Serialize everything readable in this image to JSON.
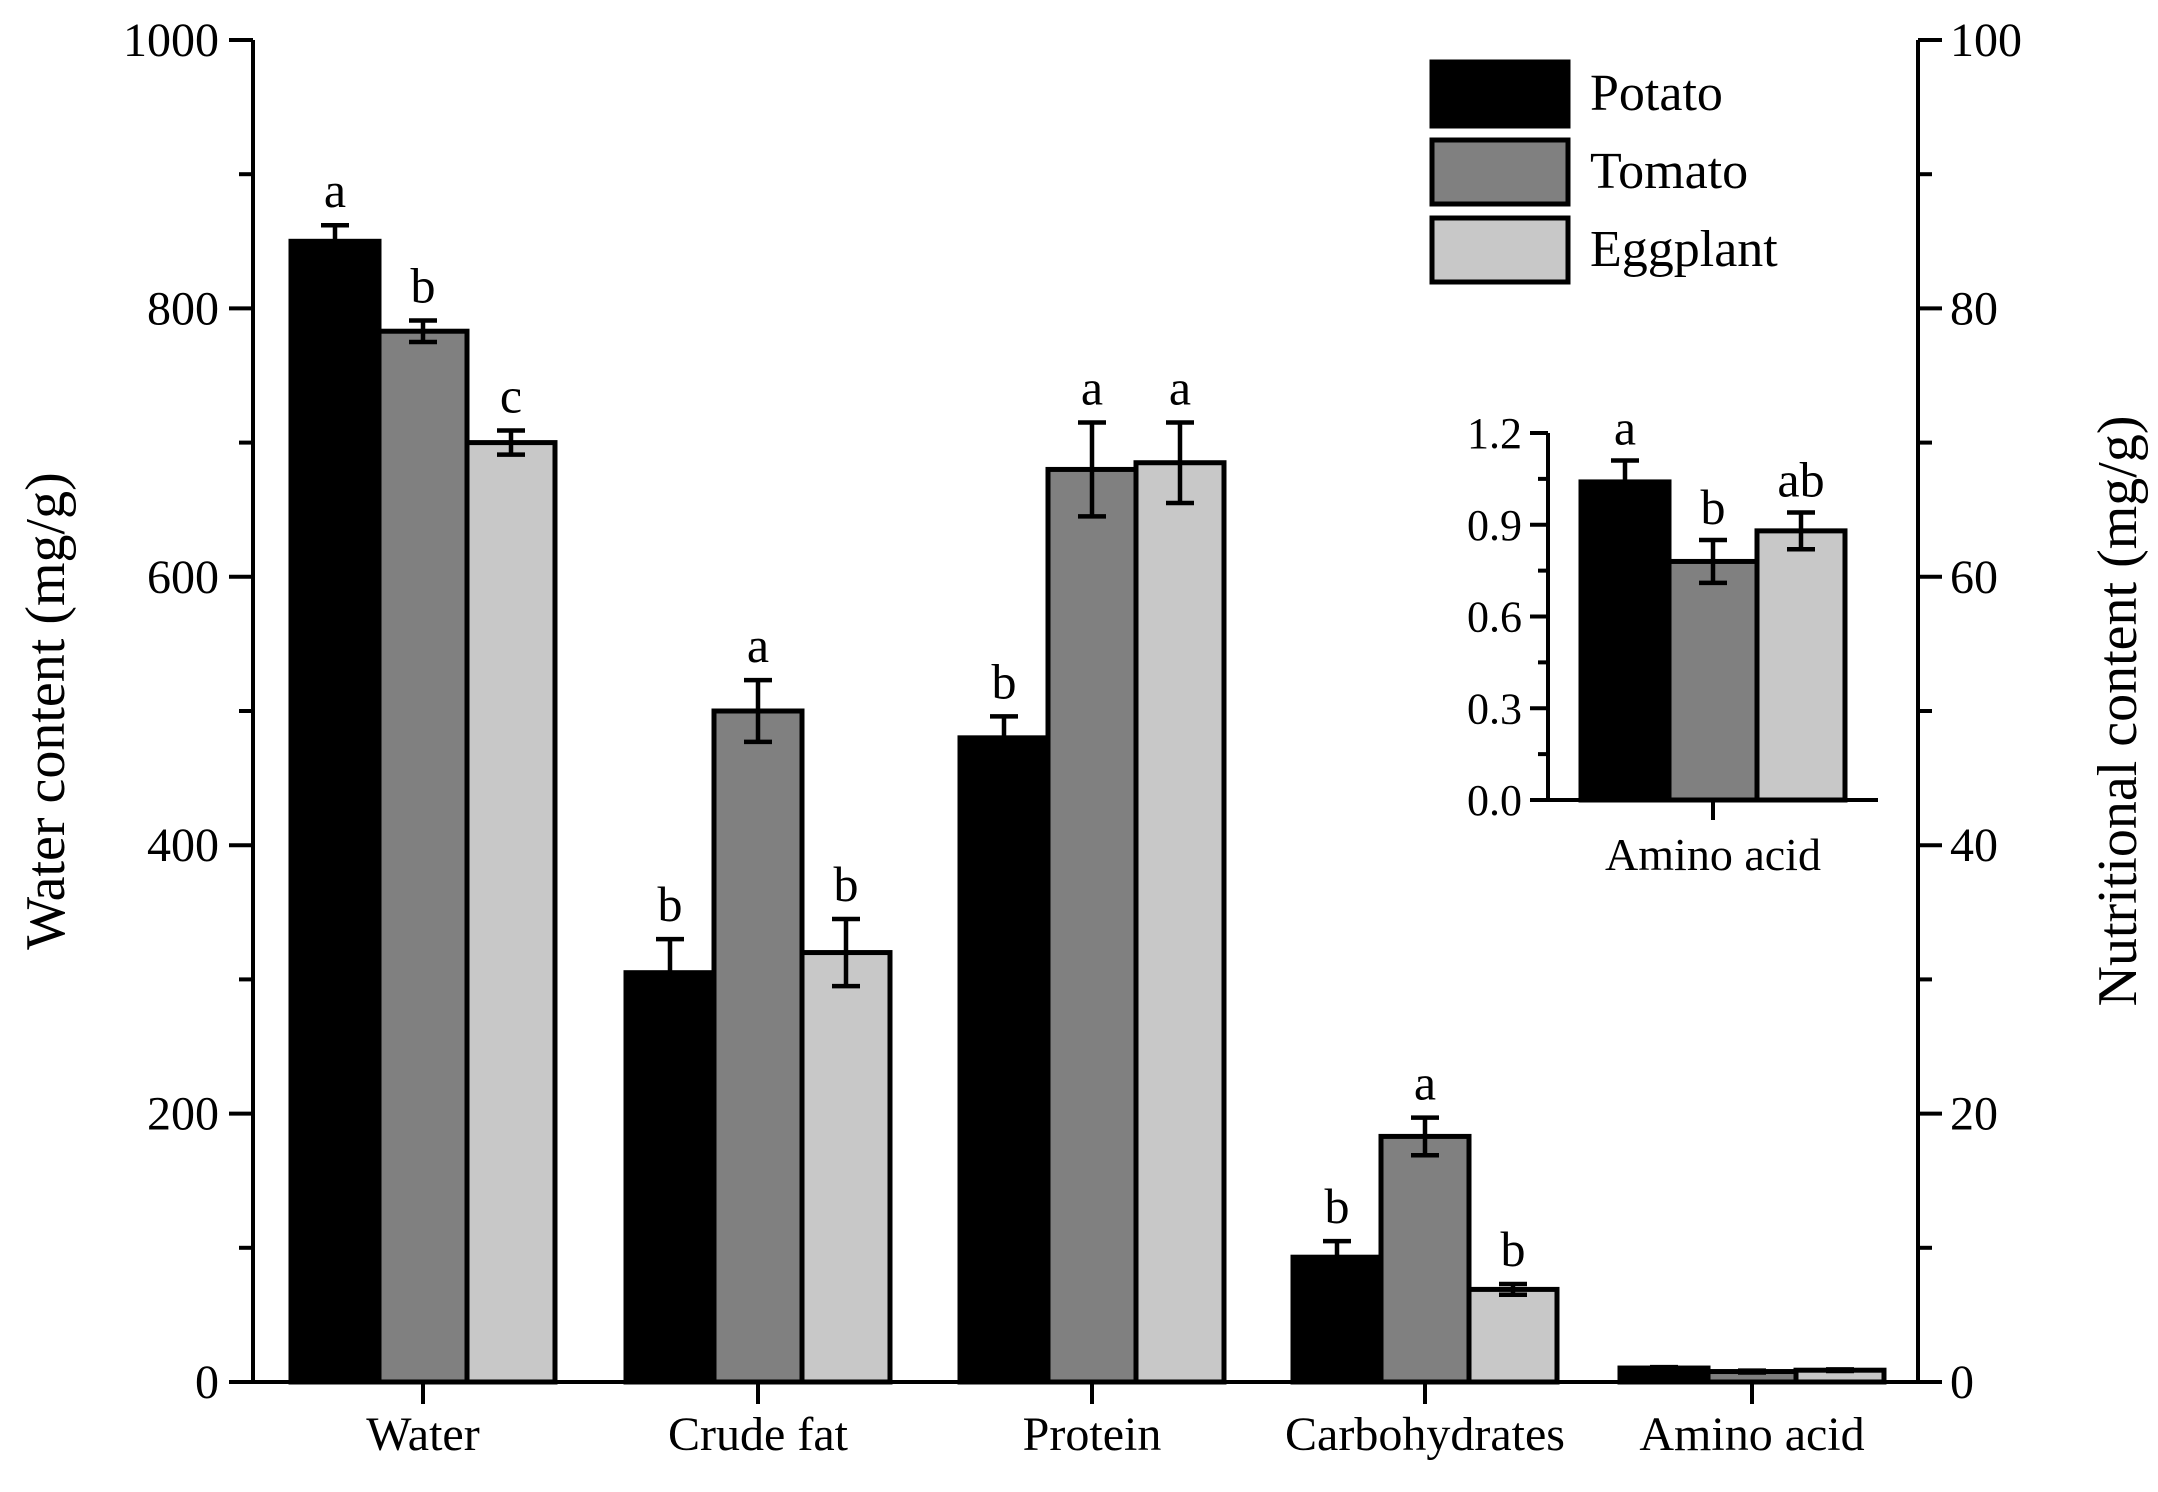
{
  "chart_data": [
    {
      "type": "bar",
      "categories": [
        "Water",
        "Crude fat",
        "Protein",
        "Carbohydrates",
        "Amino acid"
      ],
      "left_axis": {
        "label": "Water content (mg/g)",
        "lim": [
          0,
          1000
        ],
        "ticks": [
          "0",
          "200",
          "400",
          "600",
          "800",
          "1000"
        ],
        "minor_step": 100
      },
      "right_axis": {
        "label": "Nutritional content (mg/g)",
        "lim": [
          0,
          100
        ],
        "ticks": [
          "0",
          "20",
          "40",
          "60",
          "80",
          "100"
        ],
        "minor_step": 10
      },
      "series": [
        {
          "name": "Potato",
          "color": "#000000",
          "values": [
            850,
            30.5,
            48,
            9.3,
            1.04
          ],
          "errors": [
            12,
            2.5,
            1.6,
            1.2,
            0.07
          ],
          "sig": [
            "a",
            "b",
            "b",
            "b",
            ""
          ]
        },
        {
          "name": "Tomato",
          "color": "#808080",
          "values": [
            783,
            50,
            68,
            18.3,
            0.78
          ],
          "errors": [
            8,
            2.3,
            3.5,
            1.4,
            0.07
          ],
          "sig": [
            "b",
            "a",
            "a",
            "a",
            ""
          ]
        },
        {
          "name": "Eggplant",
          "color": "#c8c8c8",
          "values": [
            700,
            32,
            68.5,
            6.9,
            0.88
          ],
          "errors": [
            9,
            2.5,
            3.0,
            0.4,
            0.06
          ],
          "sig": [
            "c",
            "b",
            "a",
            "b",
            ""
          ]
        }
      ],
      "axis_for_category": [
        "left",
        "right",
        "right",
        "right",
        "right"
      ],
      "legend_position": "top-right"
    },
    {
      "type": "bar",
      "inset": true,
      "categories": [
        "Amino acid"
      ],
      "ylim": [
        0,
        1.2
      ],
      "ticks": [
        "0.0",
        "0.3",
        "0.6",
        "0.9",
        "1.2"
      ],
      "series": [
        {
          "name": "Potato",
          "values": [
            1.04
          ],
          "errors": [
            0.07
          ],
          "sig": [
            "a"
          ]
        },
        {
          "name": "Tomato",
          "values": [
            0.78
          ],
          "errors": [
            0.07
          ],
          "sig": [
            "b"
          ]
        },
        {
          "name": "Eggplant",
          "values": [
            0.88
          ],
          "errors": [
            0.06
          ],
          "sig": [
            "ab"
          ]
        }
      ]
    }
  ]
}
